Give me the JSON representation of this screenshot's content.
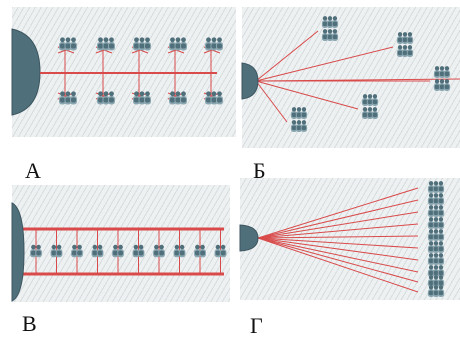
{
  "colors": {
    "line": "#d94a4a",
    "node": "#4f6f7a",
    "node_light": "#8aa6b0",
    "panel_bg": "#eef1f2"
  },
  "panels": [
    {
      "id": "a",
      "label": "А",
      "layout": "two-rows-with-bus"
    },
    {
      "id": "b",
      "label": "Б",
      "layout": "radial-clusters"
    },
    {
      "id": "c",
      "label": "В",
      "layout": "single-row-between-two-bars"
    },
    {
      "id": "d",
      "label": "Г",
      "layout": "fan-to-column"
    }
  ]
}
